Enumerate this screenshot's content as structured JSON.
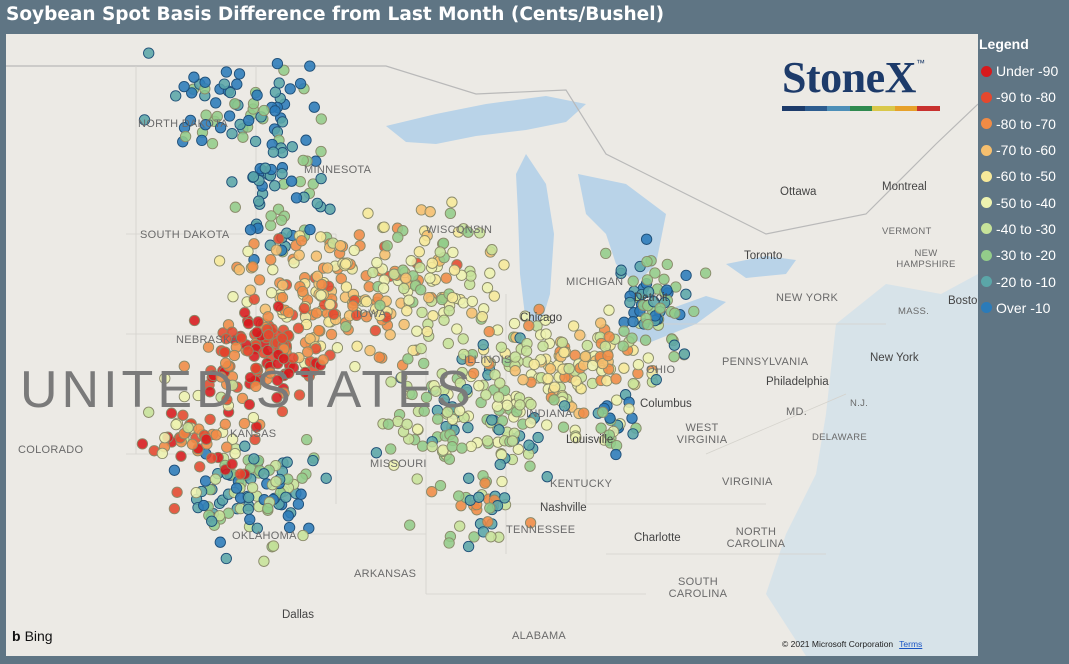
{
  "title": "Soybean Spot Basis Difference from Last Month (Cents/Bushel)",
  "legend": {
    "title": "Legend",
    "items": [
      {
        "label": "Under -90",
        "color": "#d7191c"
      },
      {
        "label": "-90 to -80",
        "color": "#e4482e"
      },
      {
        "label": "-80 to -70",
        "color": "#f08b45"
      },
      {
        "label": "-70 to -60",
        "color": "#f6bf6e"
      },
      {
        "label": "-60 to -50",
        "color": "#f7e99a"
      },
      {
        "label": "-50 to -40",
        "color": "#eef3b0"
      },
      {
        "label": "-40 to -30",
        "color": "#c7e39a"
      },
      {
        "label": "-30 to -20",
        "color": "#93cc8a"
      },
      {
        "label": "-20 to -10",
        "color": "#5ba6a8"
      },
      {
        "label": "Over -10",
        "color": "#2b7bb9"
      }
    ]
  },
  "map": {
    "big_label": "UNITED STATES",
    "states": [
      "NORTH DAKOTA",
      "MINNESOTA",
      "SOUTH DAKOTA",
      "WISCONSIN",
      "MICHIGAN",
      "NEBRASKA",
      "IOWA",
      "ILLINOIS",
      "INDIANA",
      "OHIO",
      "PENNSYLVANIA",
      "NEW YORK",
      "VERMONT",
      "NEW HAMPSHIRE",
      "MASS.",
      "MD.",
      "N.J.",
      "DELAWARE",
      "WEST VIRGINIA",
      "VIRGINIA",
      "KENTUCKY",
      "TENNESSEE",
      "MISSOURI",
      "KANSAS",
      "COLORADO",
      "OKLAHOMA",
      "ARKANSAS",
      "NORTH CAROLINA",
      "SOUTH CAROLINA",
      "ALABAMA"
    ],
    "cities": [
      "Ottawa",
      "Montreal",
      "Toronto",
      "Chicago",
      "Detroit",
      "Columbus",
      "Louisville",
      "Nashville",
      "Philadelphia",
      "New York",
      "Boston",
      "Charlotte",
      "Dallas"
    ]
  },
  "logo": {
    "text": "StoneX",
    "tm": "™",
    "bar_colors": [
      "#1d3b6a",
      "#2d5c8f",
      "#4d8fb8",
      "#2f8a4f",
      "#d9c84a",
      "#e7a12a",
      "#c8312e"
    ]
  },
  "attribution": {
    "provider": "Bing",
    "copyright": "© 2021 Microsoft Corporation",
    "terms": "Terms"
  }
}
